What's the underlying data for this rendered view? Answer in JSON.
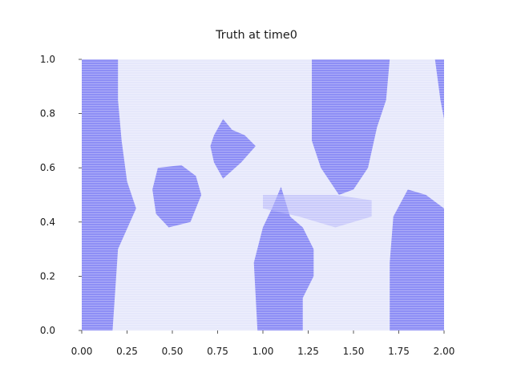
{
  "chart_data": {
    "type": "heatmap",
    "title": "Truth at time0",
    "xlabel": "",
    "ylabel": "",
    "xlim": [
      0.0,
      2.0
    ],
    "ylim": [
      0.0,
      1.0
    ],
    "x_ticks": [
      "0.00",
      "0.25",
      "0.50",
      "0.75",
      "1.00",
      "1.25",
      "1.50",
      "1.75",
      "2.00"
    ],
    "y_ticks": [
      "0.0",
      "0.2",
      "0.4",
      "0.6",
      "0.8",
      "1.0"
    ],
    "grid": false,
    "colors": {
      "low": "#ffffff",
      "high": "#2222ee"
    },
    "value_range": [
      0.0,
      1.0
    ],
    "field_regions": [
      {
        "region": "left-band",
        "value": 0.85,
        "outline_xy": [
          [
            0.0,
            0.0
          ],
          [
            0.17,
            0.0
          ],
          [
            0.2,
            0.3
          ],
          [
            0.3,
            0.45
          ],
          [
            0.25,
            0.55
          ],
          [
            0.22,
            0.7
          ],
          [
            0.2,
            0.85
          ],
          [
            0.2,
            1.0
          ],
          [
            0.0,
            1.0
          ]
        ]
      },
      {
        "region": "center-left-blob",
        "value": 0.85,
        "outline_xy": [
          [
            0.42,
            0.6
          ],
          [
            0.55,
            0.61
          ],
          [
            0.63,
            0.57
          ],
          [
            0.66,
            0.5
          ],
          [
            0.6,
            0.4
          ],
          [
            0.48,
            0.38
          ],
          [
            0.41,
            0.43
          ],
          [
            0.39,
            0.52
          ]
        ]
      },
      {
        "region": "heart-blob",
        "value": 0.85,
        "outline_xy": [
          [
            0.73,
            0.72
          ],
          [
            0.78,
            0.78
          ],
          [
            0.83,
            0.74
          ],
          [
            0.9,
            0.72
          ],
          [
            0.96,
            0.68
          ],
          [
            0.88,
            0.62
          ],
          [
            0.78,
            0.56
          ],
          [
            0.73,
            0.62
          ],
          [
            0.71,
            0.68
          ]
        ]
      },
      {
        "region": "center-bottom",
        "value": 0.85,
        "outline_xy": [
          [
            0.97,
            0.0
          ],
          [
            0.95,
            0.25
          ],
          [
            1.0,
            0.38
          ],
          [
            1.05,
            0.45
          ],
          [
            1.1,
            0.53
          ],
          [
            1.15,
            0.42
          ],
          [
            1.22,
            0.38
          ],
          [
            1.28,
            0.3
          ],
          [
            1.28,
            0.2
          ],
          [
            1.22,
            0.12
          ],
          [
            1.22,
            0.0
          ]
        ]
      },
      {
        "region": "top-center-right",
        "value": 0.85,
        "outline_xy": [
          [
            1.27,
            1.0
          ],
          [
            1.27,
            0.7
          ],
          [
            1.32,
            0.6
          ],
          [
            1.42,
            0.5
          ],
          [
            1.5,
            0.52
          ],
          [
            1.58,
            0.6
          ],
          [
            1.63,
            0.75
          ],
          [
            1.68,
            0.85
          ],
          [
            1.7,
            1.0
          ]
        ]
      },
      {
        "region": "right-bottom",
        "value": 0.85,
        "outline_xy": [
          [
            1.7,
            0.0
          ],
          [
            1.7,
            0.25
          ],
          [
            1.72,
            0.42
          ],
          [
            1.8,
            0.52
          ],
          [
            1.9,
            0.5
          ],
          [
            2.0,
            0.45
          ],
          [
            2.0,
            0.0
          ]
        ]
      },
      {
        "region": "right-top-strip",
        "value": 0.85,
        "outline_xy": [
          [
            1.95,
            1.0
          ],
          [
            1.98,
            0.85
          ],
          [
            2.0,
            0.78
          ],
          [
            2.0,
            1.0
          ]
        ]
      },
      {
        "region": "center-valley",
        "value": 0.35,
        "outline_xy": [
          [
            1.0,
            0.45
          ],
          [
            1.2,
            0.42
          ],
          [
            1.4,
            0.38
          ],
          [
            1.6,
            0.42
          ],
          [
            1.6,
            0.48
          ],
          [
            1.4,
            0.5
          ],
          [
            1.2,
            0.5
          ],
          [
            1.0,
            0.5
          ]
        ]
      }
    ]
  }
}
